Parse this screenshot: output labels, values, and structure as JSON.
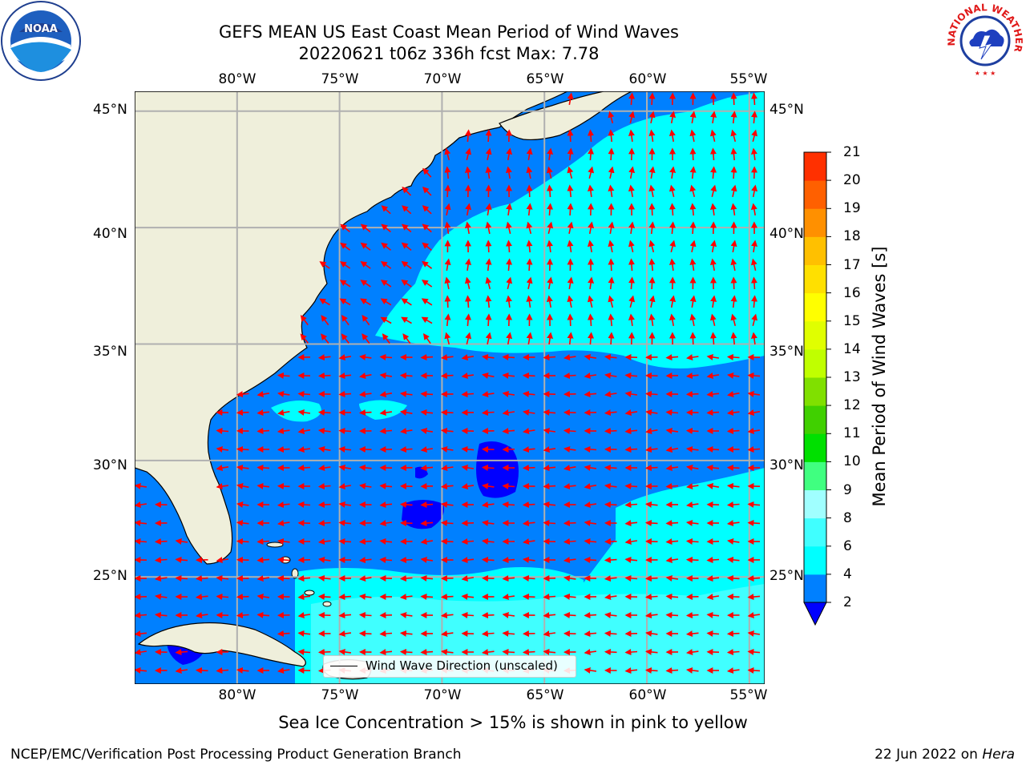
{
  "header": {
    "title_line1": "GEFS MEAN US East Coast Mean Period of Wind Waves",
    "title_line2": "20220621 t06z 336h fcst   Max: 7.78"
  },
  "map": {
    "lon_labels": [
      "80°W",
      "75°W",
      "70°W",
      "65°W",
      "60°W",
      "55°W"
    ],
    "lat_labels": [
      "45°N",
      "40°N",
      "35°N",
      "30°N",
      "25°N"
    ],
    "lon_range": [
      -85,
      -54.25
    ],
    "lat_range": [
      20.4,
      45.85
    ],
    "land_color": "#efefdb",
    "coast_color": "#000000",
    "grid_color": "#b0b0b0",
    "arrow_color": "#ff0000",
    "legend_text": "Wind Wave Direction (unscaled)"
  },
  "colorbar": {
    "title": "Mean Period of Wind Waves [s]",
    "ticks": [
      "2",
      "4",
      "6",
      "8",
      "9",
      "10",
      "11",
      "12",
      "13",
      "14",
      "15",
      "16",
      "17",
      "18",
      "19",
      "20",
      "21"
    ],
    "levels": [
      2,
      4,
      6,
      8,
      9,
      10,
      11,
      12,
      13,
      14,
      15,
      16,
      17,
      18,
      19,
      20,
      21
    ],
    "colors": [
      "#0080ff",
      "#00ffff",
      "#40ffff",
      "#a0ffff",
      "#40ff80",
      "#00e000",
      "#40d000",
      "#80e000",
      "#c0ff00",
      "#e0ff00",
      "#ffff00",
      "#ffe000",
      "#ffc000",
      "#ff9000",
      "#ff6000",
      "#ff3000",
      "#ff0000"
    ],
    "under_color": "#0000ff"
  },
  "notes": {
    "ice": "Sea Ice Concentration > 15% is shown in pink to yellow"
  },
  "footer": {
    "left": "NCEP/EMC/Verification Post Processing Product Generation Branch",
    "date": "22 Jun 2022 on",
    "host": "Hera"
  },
  "logos": {
    "noaa": "NOAA",
    "nws": "NATIONAL WEATHER SERVICE"
  }
}
